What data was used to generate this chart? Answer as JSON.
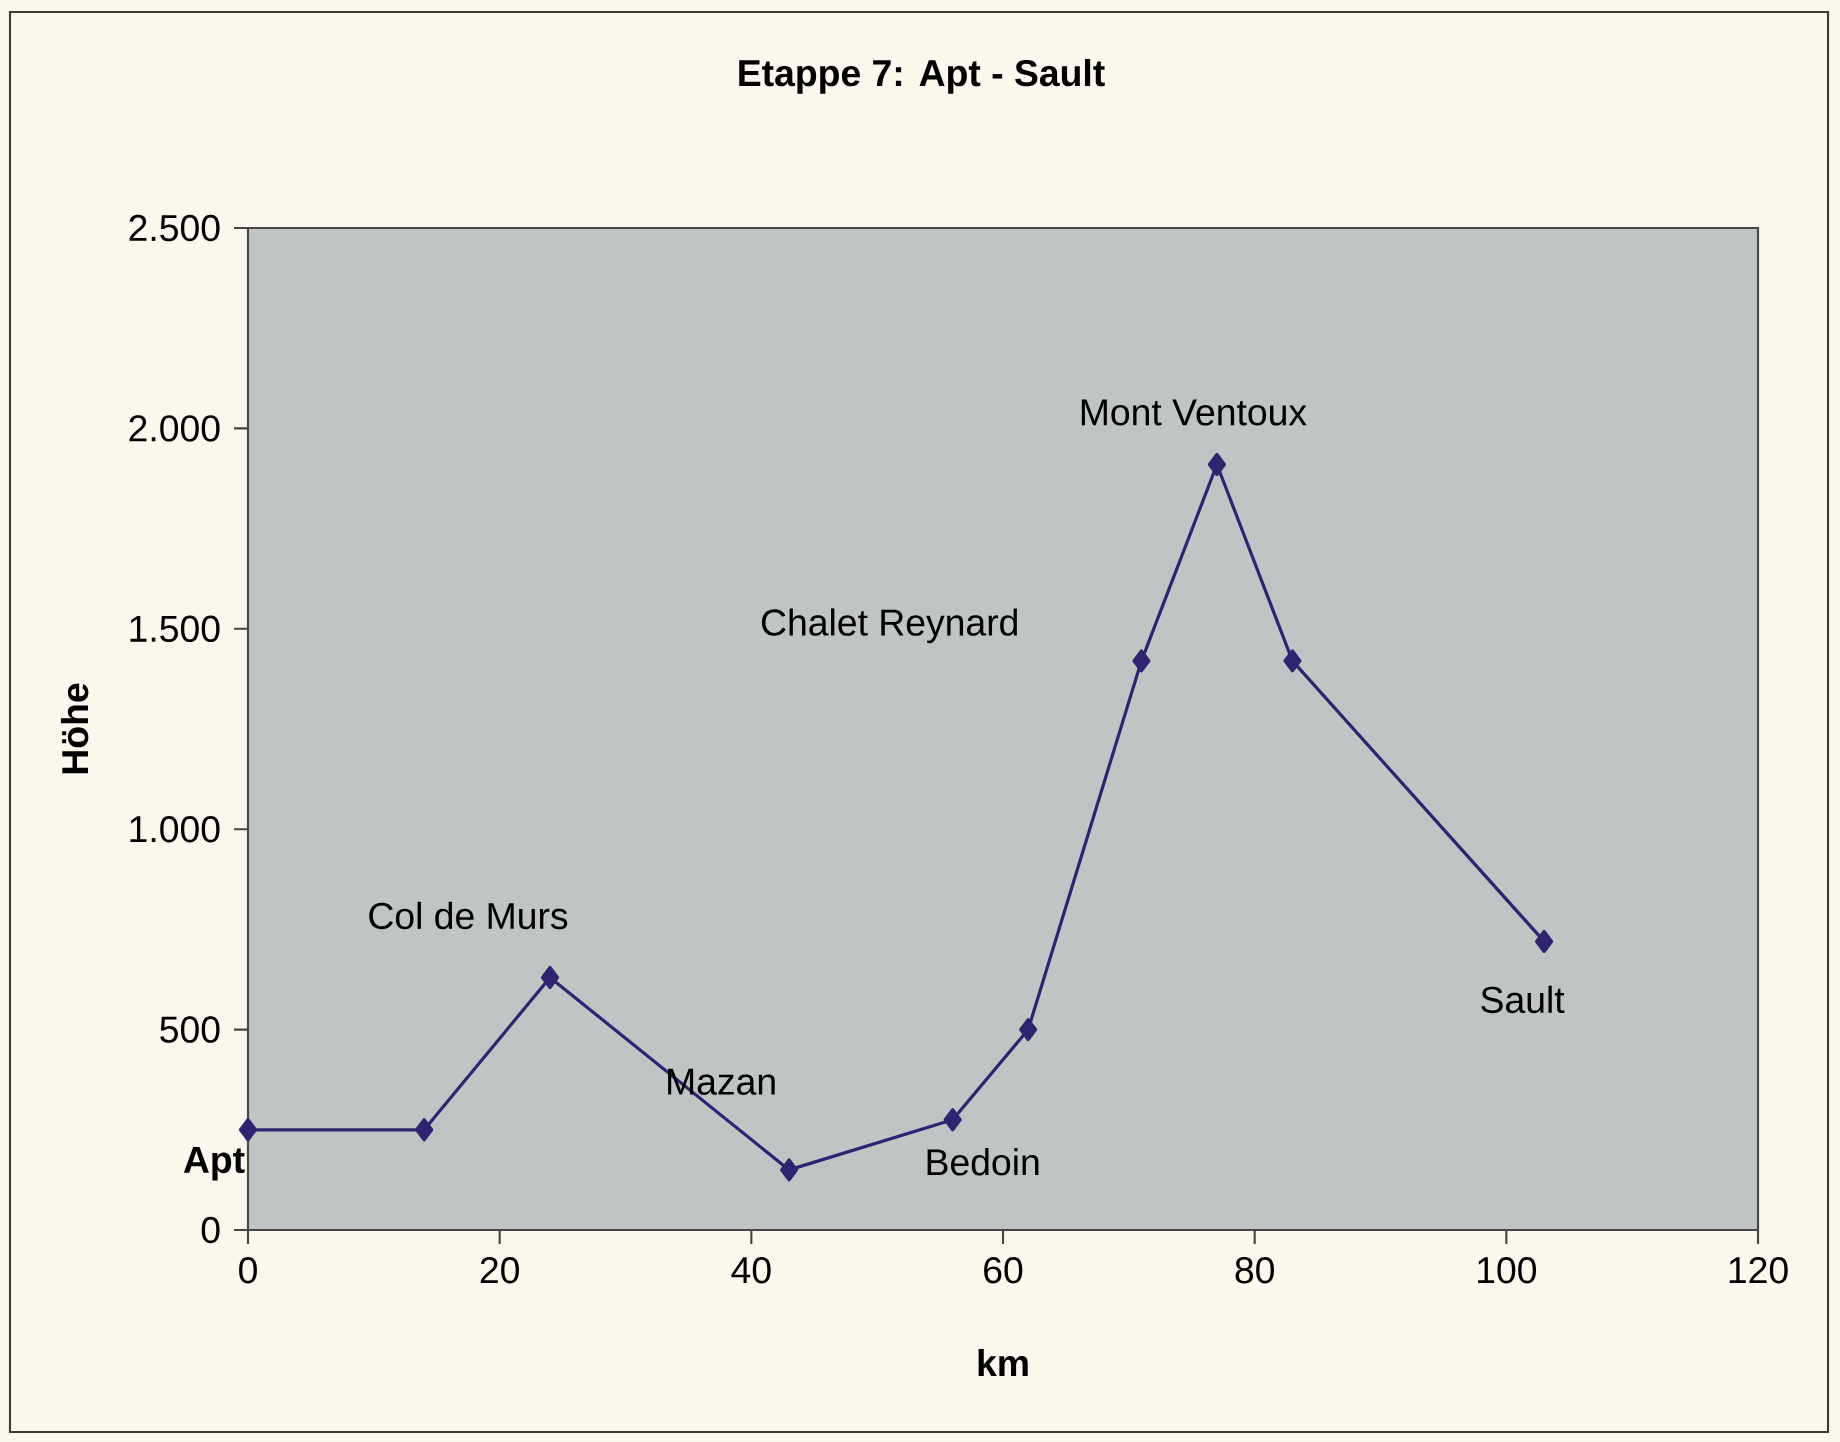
{
  "chart_data": {
    "type": "line",
    "title": "Etappe 7: Apt - Sault",
    "xlabel": "km",
    "ylabel": "Höhe",
    "x": [
      0,
      14,
      24,
      43,
      56,
      62,
      71,
      77,
      83,
      103
    ],
    "series": [
      {
        "color": "#2e2470",
        "values": [
          250,
          250,
          630,
          150,
          275,
          500,
          1420,
          1910,
          1420,
          720
        ]
      }
    ],
    "xlim": [
      0,
      120
    ],
    "xticks": [
      0,
      20,
      40,
      60,
      80,
      100,
      120
    ],
    "ylim": [
      0,
      2500
    ],
    "yticks": [
      0,
      {
        "value": 500,
        "label": "500"
      },
      {
        "value": 1000,
        "label": "1.000"
      },
      {
        "value": 1500,
        "label": "1.500"
      },
      {
        "value": 2000,
        "label": "2.000"
      },
      {
        "value": 2500,
        "label": "2.500"
      }
    ],
    "marker": "diamond",
    "line_style": "solid",
    "annotations": [
      {
        "text": "Apt",
        "x": 0,
        "y": 250
      },
      {
        "text": "Col de Murs",
        "x": 24,
        "y": 630
      },
      {
        "text": "Mazan",
        "x": 43,
        "y": 150
      },
      {
        "text": "Bedoin",
        "x": 56,
        "y": 275
      },
      "Chalet Reynard",
      {
        "text": "Mont Ventoux",
        "x": 77,
        "y": 1910
      },
      {
        "text": "Sault",
        "x": 103,
        "y": 720
      }
    ]
  }
}
